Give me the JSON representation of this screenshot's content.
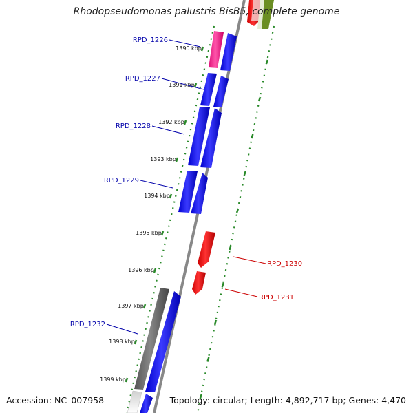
{
  "title": "Rhodopseudomonas palustris BisB5, complete genome",
  "accession_text": "Accession: NC_007958",
  "summary_text": "Topology: circular; Length: 4,892,717 bp; Genes: 4,470",
  "tick_labels": [
    "1390 kbp",
    "1391 kbp",
    "1392 kbp",
    "1393 kbp",
    "1394 kbp",
    "1395 kbp",
    "1396 kbp",
    "1397 kbp",
    "1398 kbp",
    "1399 kbp"
  ],
  "genes": [
    {
      "label": "RPD_1226",
      "strand": "plus",
      "color": "#0000ee"
    },
    {
      "label": "RPD_1227",
      "strand": "plus",
      "color": "#0000ee"
    },
    {
      "label": "RPD_1228",
      "strand": "plus",
      "color": "#0000ee"
    },
    {
      "label": "RPD_1229",
      "strand": "plus",
      "color": "#0000ee"
    },
    {
      "label": "RPD_1230",
      "strand": "minus",
      "color": "#ee0000"
    },
    {
      "label": "RPD_1231",
      "strand": "minus",
      "color": "#ee0000"
    },
    {
      "label": "RPD_1232",
      "strand": "plus",
      "color": "#0000ee"
    }
  ],
  "colors": {
    "plus_label": "#0000aa",
    "minus_label": "#cc0000",
    "cds_plus": "#0000ee",
    "cds_minus": "#ee0000",
    "trna": "#ee1188",
    "gene_gray": "#666666",
    "gc_skew": "#669933",
    "ruler": "#2a8a2a",
    "backbone": "#888888"
  }
}
